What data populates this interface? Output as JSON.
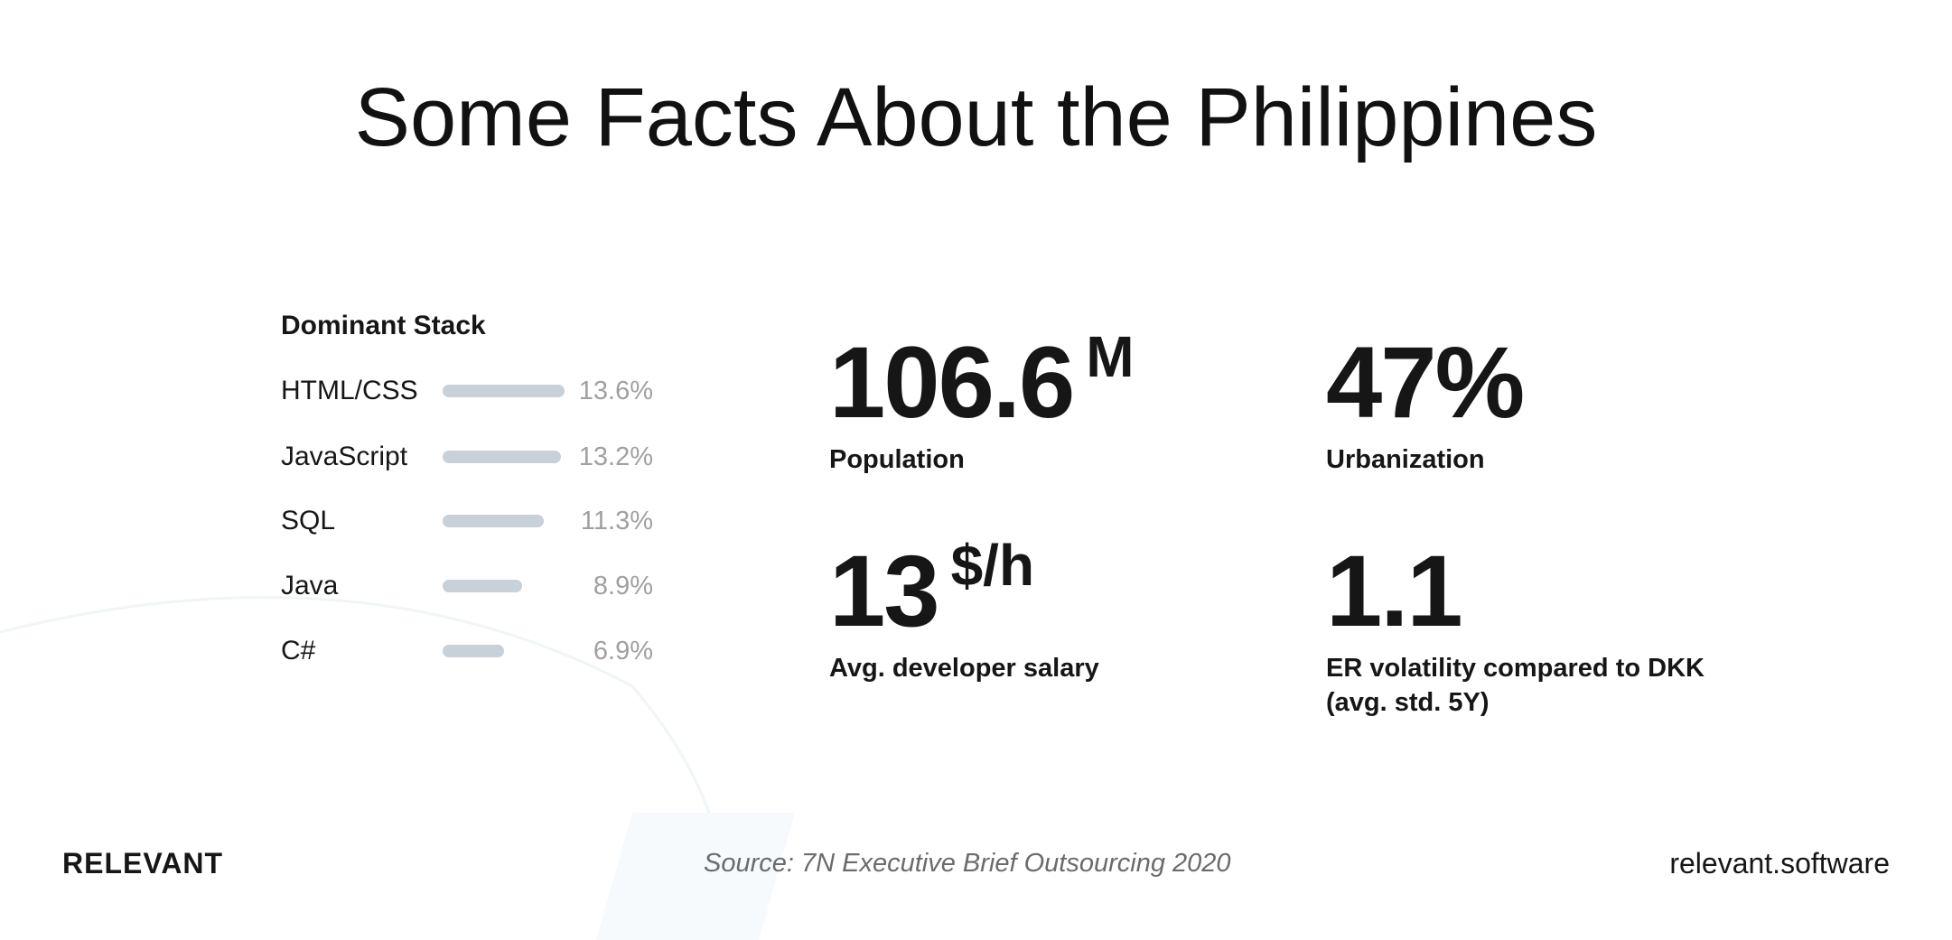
{
  "title": "Some Facts About the Philippines",
  "stack": {
    "heading": "Dominant Stack",
    "items": [
      {
        "label": "HTML/CSS",
        "value": 13.6,
        "display": "13.6%"
      },
      {
        "label": "JavaScript",
        "value": 13.2,
        "display": "13.2%"
      },
      {
        "label": "SQL",
        "value": 11.3,
        "display": "11.3%"
      },
      {
        "label": "Java",
        "value": 8.9,
        "display": "8.9%"
      },
      {
        "label": "C#",
        "value": 6.9,
        "display": "6.9%"
      }
    ],
    "bar_color": "#c8d0d8"
  },
  "stats": [
    {
      "value": "106.6",
      "unit": "M",
      "caption": "Population"
    },
    {
      "value": "47%",
      "unit": "",
      "caption": "Urbanization"
    },
    {
      "value": "13",
      "unit": "$/h",
      "caption": "Avg. developer salary"
    },
    {
      "value": "1.1",
      "unit": "",
      "caption": "ER volatility compared to DKK",
      "caption2": "(avg. std. 5Y)"
    }
  ],
  "footer": {
    "logo": "RELEVANT",
    "source": "Source: 7N Executive Brief Outsourcing 2020",
    "url": "relevant.software"
  }
}
